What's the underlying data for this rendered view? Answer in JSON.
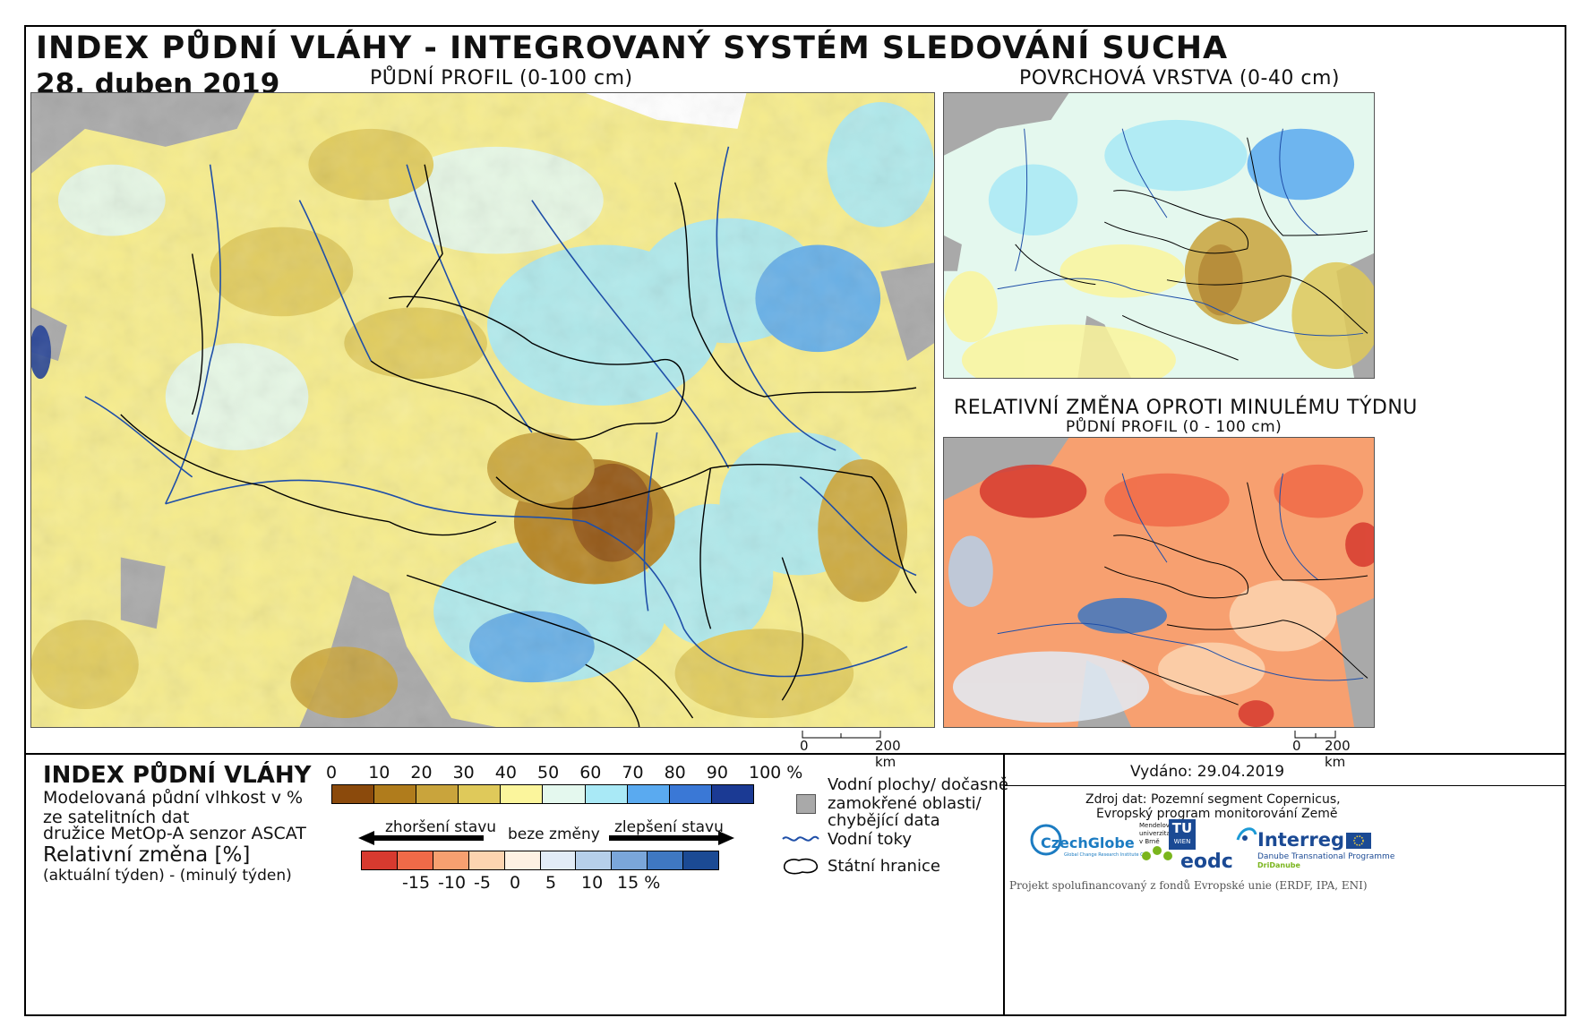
{
  "header": {
    "title": "INDEX PŮDNÍ VLÁHY - INTEGROVANÝ SYSTÉM SLEDOVÁNÍ SUCHA",
    "date": "28. duben 2019"
  },
  "maps": {
    "main_label": "PŮDNÍ PROFIL (0-100 cm)",
    "surface_label": "POVRCHOVÁ VRSTVA (0-40 cm)",
    "change_label": "RELATIVNÍ ZMĚNA OPROTI MINULÉMU TÝDNU",
    "change_sublabel": "PŮDNÍ PROFIL (0 - 100 cm)"
  },
  "scalebars": {
    "main": {
      "start": "0",
      "end": "200 km"
    },
    "small": {
      "start": "0",
      "end": "200 km"
    }
  },
  "legend": {
    "title": "INDEX PŮDNÍ VLÁHY",
    "desc_line1": "Modelovaná půdní vlhkost v %",
    "desc_line2": "ze satelitních dat",
    "desc_line3": "družice MetOp-A senzor ASCAT",
    "change_title": "Relativní změna [%]",
    "change_desc": "(aktuální týden) - (minulý týden)",
    "moisture_ticks": [
      "0",
      "10",
      "20",
      "30",
      "40",
      "50",
      "60",
      "70",
      "80",
      "90",
      "100 %"
    ],
    "moisture_colors": [
      "#8b4a0c",
      "#b07c1c",
      "#c9a43c",
      "#dfc95a",
      "#fbf59c",
      "#e4f8ee",
      "#a9e9f6",
      "#5aaaf0",
      "#3a78d6",
      "#1b3a94"
    ],
    "worse_label": "zhoršení stavu",
    "nochange_label": "beze změny",
    "better_label": "zlepšení stavu",
    "change_ticks": [
      "-15",
      "-10",
      "-5",
      "0",
      "5",
      "10",
      "15 %"
    ],
    "change_colors": [
      "#d73a2f",
      "#f06a48",
      "#f7a070",
      "#fcd4b0",
      "#fdf1e3",
      "#e2ecf7",
      "#b6cfea",
      "#7aa6da",
      "#3f78c2",
      "#1b4a94"
    ],
    "water_label_1": "Vodní plochy/ dočasně",
    "water_label_2": "zamokřené oblasti/",
    "water_label_3": "chybějící data",
    "rivers_label": "Vodní toky",
    "borders_label": "Státní hranice"
  },
  "info": {
    "issued": "Vydáno: 29.04.2019",
    "source_1": "Zdroj dat: Pozemní segment Copernicus,",
    "source_2": "Evropský program monitorování Země",
    "funding": "Projekt spolufinancovaný z fondů Evropské unie (ERDF, IPA, ENI)",
    "logo_czechglobe": "CzechGlobe",
    "logo_czechglobe_sub": "Global Change Research Institute CAS",
    "logo_mendel_1": "Mendelova",
    "logo_mendel_2": "univerzita",
    "logo_mendel_3": "v Brně",
    "logo_tu": "TU",
    "logo_tu_sub": "WIEN",
    "logo_eodc": "eodc",
    "logo_interreg": "Interreg",
    "logo_interreg_sub": "Danube Transnational Programme",
    "logo_dridanube": "DriDanube"
  }
}
